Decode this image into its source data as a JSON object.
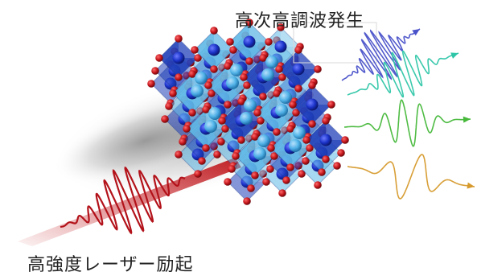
{
  "labels": {
    "output": "高次高調波発生",
    "input": "高強度レーザー励起"
  },
  "colors": {
    "laser": "#c0161b",
    "oxygen": "#c4161c",
    "octahedron_light": "#5fb8e6",
    "octahedron_dark": "#1f3fb8",
    "center_atom": "#1a32c8",
    "a_site_atom": "#4fb3e8",
    "harmonic_blue": "#4a52c9",
    "harmonic_cyan": "#2fc6a8",
    "harmonic_green": "#46b83a",
    "harmonic_orange": "#d69a2c"
  },
  "icons": {
    "crystal": "perovskite-crystal-icon",
    "laser": "laser-pulse-icon",
    "harmonics": "harmonic-waveforms-icon"
  }
}
